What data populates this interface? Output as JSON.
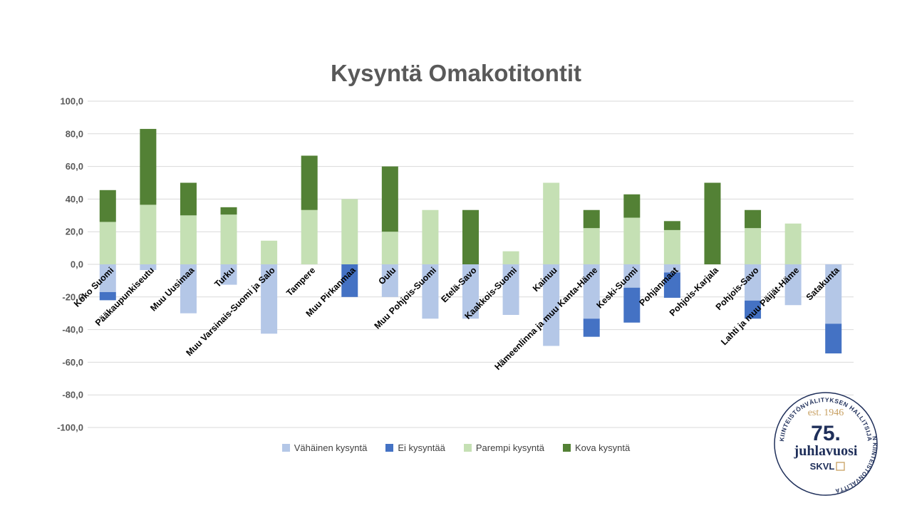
{
  "chart_data": {
    "type": "bar",
    "stacked": true,
    "title": "Kysyntä Omakotitontit",
    "ylim": [
      -100,
      100
    ],
    "yticks": [
      "100,0",
      "80,0",
      "60,0",
      "40,0",
      "20,0",
      "0,0",
      "-20,0",
      "-40,0",
      "-60,0",
      "-80,0",
      "-100,0"
    ],
    "ytick_values": [
      100,
      80,
      60,
      40,
      20,
      0,
      -20,
      -40,
      -60,
      -80,
      -100
    ],
    "grid": true,
    "legend": "bottom",
    "categories": [
      "Koko Suomi",
      "Pääkaupunkiseutu",
      "Muu Uusimaa",
      "Turku",
      "Muu Varsinais-Suomi ja Salo",
      "Tampere",
      "Muu Pirkanmaa",
      "Oulu",
      "Muu Pohjois-Suomi",
      "Etelä-Savo",
      "Kaakkois-Suomi",
      "Kainuu",
      "Hämeenlinna ja muu Kanta-Häme",
      "Keski-Suomi",
      "Pohjanmaat",
      "Pohjois-Karjala",
      "Pohjois-Savo",
      "Lahti ja muu Päijät-Häme",
      "Satakunta"
    ],
    "series": [
      {
        "name": "Vähäinen kysyntä",
        "color": "#b4c7e7",
        "direction": "negative",
        "values": [
          -17,
          -3.5,
          -30,
          -12.5,
          -42.5,
          0,
          0,
          -20,
          -33.3,
          -33.3,
          -31,
          -50,
          -33.3,
          -14.3,
          -5,
          0,
          -22.2,
          -25,
          -36.4
        ]
      },
      {
        "name": "Ei kysyntää",
        "color": "#4472c4",
        "direction": "negative",
        "values": [
          -5,
          0,
          0,
          0,
          0,
          0,
          -20,
          0,
          0,
          0,
          0,
          0,
          -11.1,
          -21.4,
          -15.5,
          0,
          -11.1,
          0,
          -18.2
        ]
      },
      {
        "name": "Parempi kysyntä",
        "color": "#c5e0b4",
        "direction": "positive",
        "values": [
          26,
          36.5,
          30,
          30.5,
          14.5,
          33.3,
          40,
          20,
          33.3,
          0,
          8,
          50,
          22.2,
          28.6,
          21,
          0,
          22.2,
          25,
          0
        ]
      },
      {
        "name": "Kova kysyntä",
        "color": "#538135",
        "direction": "positive",
        "values": [
          19.5,
          46.5,
          20,
          4.5,
          0,
          33.3,
          0,
          40,
          0,
          33.3,
          0,
          0,
          11.1,
          14.3,
          5.5,
          50,
          11.1,
          0,
          0
        ]
      }
    ]
  },
  "logo": {
    "top_arc": "KIINTEISTÖNVÄLITYKSEN HALLITSIJA",
    "right_arc": "SUOMEN KIINTEISTÖNVÄLITTÄJÄT RY",
    "est": "est. 1946",
    "number": "75.",
    "word": "juhlavuosi",
    "brand": "SKVL"
  }
}
